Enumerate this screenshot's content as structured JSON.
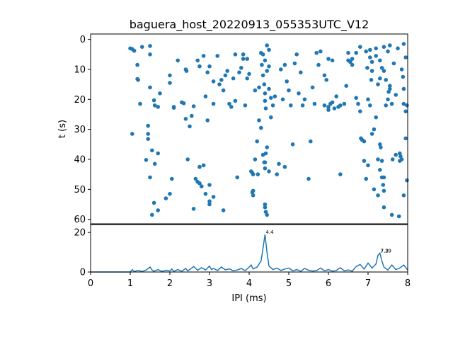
{
  "title": "baguera_host_20220913_055353UTC_V12",
  "colors": {
    "series": "#1f77b4",
    "axes": "#000000",
    "background": "#ffffff"
  },
  "chart_data": [
    {
      "type": "scatter",
      "title": "baguera_host_20220913_055353UTC_V12",
      "xlabel": "",
      "ylabel": "t (s)",
      "xlim": [
        0,
        8
      ],
      "ylim": [
        61.5,
        -1.8
      ],
      "y_inverted": true,
      "yticks": [
        0,
        10,
        20,
        30,
        40,
        50,
        60
      ],
      "grid": false,
      "points": [
        [
          1.05,
          3.2
        ],
        [
          1.1,
          3.8
        ],
        [
          1.18,
          8.5
        ],
        [
          1.18,
          13.2
        ],
        [
          1.25,
          21.5
        ],
        [
          1.05,
          31.5
        ],
        [
          1.4,
          40.2
        ],
        [
          1.45,
          28.8
        ],
        [
          1.45,
          31.5
        ],
        [
          1.45,
          33.2
        ],
        [
          1.5,
          16.0
        ],
        [
          1.5,
          46.0
        ],
        [
          1.55,
          37.0
        ],
        [
          1.6,
          20.3
        ],
        [
          1.62,
          22.0
        ],
        [
          1.7,
          22.5
        ],
        [
          1.75,
          18.0
        ],
        [
          1.6,
          54.5
        ],
        [
          1.55,
          58.5
        ],
        [
          1.3,
          2.5
        ],
        [
          1.5,
          2.2
        ],
        [
          1.5,
          5.0
        ],
        [
          1.7,
          57.0
        ],
        [
          1.9,
          53.0
        ],
        [
          2.0,
          51.5
        ],
        [
          2.05,
          46.5
        ],
        [
          2.0,
          12.0
        ],
        [
          2.0,
          14.5
        ],
        [
          2.1,
          22.8
        ],
        [
          2.2,
          7.0
        ],
        [
          2.3,
          21.0
        ],
        [
          2.35,
          21.3
        ],
        [
          2.4,
          10.0
        ],
        [
          2.42,
          10.5
        ],
        [
          2.45,
          40.0
        ],
        [
          2.5,
          29.0
        ],
        [
          2.55,
          25.5
        ],
        [
          2.6,
          22.3
        ],
        [
          2.65,
          46.5
        ],
        [
          2.7,
          47.5
        ],
        [
          2.75,
          42.5
        ],
        [
          2.8,
          49.0
        ],
        [
          2.85,
          42.0
        ],
        [
          2.9,
          51.5
        ],
        [
          2.9,
          19.0
        ],
        [
          2.95,
          27.0
        ],
        [
          3.0,
          9.0
        ],
        [
          3.0,
          48.5
        ],
        [
          3.1,
          52.5
        ],
        [
          3.0,
          54.0
        ],
        [
          3.1,
          21.5
        ],
        [
          3.2,
          5.5
        ],
        [
          3.25,
          15.0
        ],
        [
          3.3,
          13.5
        ],
        [
          3.35,
          17.0
        ],
        [
          3.4,
          12.0
        ],
        [
          3.45,
          10.5
        ],
        [
          3.5,
          21.5
        ],
        [
          3.55,
          22.5
        ],
        [
          3.6,
          13.0
        ],
        [
          3.65,
          5.0
        ],
        [
          3.7,
          46.0
        ],
        [
          3.75,
          11.0
        ],
        [
          3.8,
          9.5
        ],
        [
          3.85,
          6.5
        ],
        [
          3.9,
          22.0
        ],
        [
          3.95,
          13.0
        ],
        [
          4.0,
          11.5
        ],
        [
          4.05,
          44.0
        ],
        [
          4.1,
          45.0
        ],
        [
          4.1,
          50.5
        ],
        [
          4.1,
          52.0
        ],
        [
          4.15,
          40.0
        ],
        [
          4.2,
          34.0
        ],
        [
          4.22,
          45.0
        ],
        [
          4.25,
          27.0
        ],
        [
          4.3,
          29.5
        ],
        [
          4.35,
          38.5
        ],
        [
          4.38,
          41.0
        ],
        [
          4.4,
          43.0
        ],
        [
          4.42,
          38.0
        ],
        [
          4.45,
          36.0
        ],
        [
          4.4,
          18.0
        ],
        [
          4.4,
          20.5
        ],
        [
          4.42,
          23.0
        ],
        [
          4.38,
          15.0
        ],
        [
          4.35,
          12.0
        ],
        [
          4.4,
          7.0
        ],
        [
          4.45,
          2.0
        ],
        [
          4.5,
          3.5
        ],
        [
          4.4,
          56.0
        ],
        [
          4.42,
          57.5
        ],
        [
          4.45,
          58.5
        ],
        [
          4.4,
          55.0
        ],
        [
          4.5,
          9.0
        ],
        [
          4.55,
          26.0
        ],
        [
          4.6,
          22.0
        ],
        [
          4.65,
          19.0
        ],
        [
          4.7,
          45.0
        ],
        [
          4.75,
          41.5
        ],
        [
          4.8,
          10.0
        ],
        [
          4.85,
          20.0
        ],
        [
          4.9,
          8.5
        ],
        [
          4.9,
          42.5
        ],
        [
          4.95,
          14.0
        ],
        [
          5.0,
          17.0
        ],
        [
          5.05,
          22.0
        ],
        [
          5.1,
          35.0
        ],
        [
          5.15,
          8.0
        ],
        [
          5.2,
          5.0
        ],
        [
          5.25,
          18.0
        ],
        [
          5.3,
          11.0
        ],
        [
          5.35,
          22.0
        ],
        [
          5.4,
          20.0
        ],
        [
          5.5,
          46.5
        ],
        [
          5.55,
          34.0
        ],
        [
          5.6,
          16.0
        ],
        [
          5.65,
          21.5
        ],
        [
          5.7,
          4.5
        ],
        [
          5.8,
          4.0
        ],
        [
          5.9,
          22.0
        ],
        [
          6.0,
          6.5
        ],
        [
          6.05,
          21.5
        ],
        [
          6.1,
          7.0
        ],
        [
          6.15,
          23.0
        ],
        [
          6.2,
          19.0
        ],
        [
          6.25,
          22.5
        ],
        [
          6.3,
          45.0
        ],
        [
          6.4,
          21.5
        ],
        [
          6.45,
          15.5
        ],
        [
          6.5,
          4.5
        ],
        [
          6.55,
          7.5
        ],
        [
          6.6,
          8.5
        ],
        [
          6.7,
          19.5
        ],
        [
          6.75,
          21.5
        ],
        [
          6.8,
          24.0
        ],
        [
          6.85,
          33.5
        ],
        [
          6.9,
          40.5
        ],
        [
          6.95,
          46.5
        ],
        [
          7.0,
          42.0
        ],
        [
          7.0,
          20.0
        ],
        [
          7.05,
          22.0
        ],
        [
          7.1,
          10.5
        ],
        [
          7.1,
          31.5
        ],
        [
          7.15,
          30.0
        ],
        [
          7.2,
          26.0
        ],
        [
          7.25,
          40.0
        ],
        [
          7.3,
          43.5
        ],
        [
          7.3,
          35.0
        ],
        [
          7.32,
          36.0
        ],
        [
          7.35,
          46.0
        ],
        [
          7.38,
          48.5
        ],
        [
          7.4,
          56.0
        ],
        [
          7.4,
          50.5
        ],
        [
          7.45,
          22.0
        ],
        [
          7.5,
          20.0
        ],
        [
          7.52,
          17.5
        ],
        [
          7.55,
          15.5
        ],
        [
          7.6,
          21.5
        ],
        [
          7.65,
          8.0
        ],
        [
          7.7,
          18.5
        ],
        [
          7.75,
          3.0
        ],
        [
          7.8,
          38.0
        ],
        [
          7.85,
          40.0
        ],
        [
          7.9,
          21.5
        ],
        [
          7.95,
          33.0
        ],
        [
          7.98,
          47.0
        ],
        [
          7.6,
          58.5
        ],
        [
          7.78,
          59.0
        ],
        [
          7.9,
          52.0
        ],
        [
          6.95,
          4.0
        ],
        [
          7.05,
          6.0
        ],
        [
          7.2,
          5.5
        ],
        [
          7.3,
          13.0
        ],
        [
          7.4,
          10.5
        ],
        [
          7.5,
          4.0
        ],
        [
          7.55,
          2.0
        ],
        [
          7.1,
          7.5
        ],
        [
          7.3,
          7.0
        ],
        [
          7.35,
          9.5
        ],
        [
          7.4,
          2.5
        ],
        [
          6.7,
          4.5
        ],
        [
          6.8,
          2.5
        ],
        [
          7.05,
          3.5
        ],
        [
          7.2,
          3.0
        ],
        [
          6.98,
          9.5
        ],
        [
          7.08,
          13.5
        ],
        [
          7.25,
          15.0
        ],
        [
          7.45,
          13.5
        ],
        [
          7.55,
          16.5
        ],
        [
          3.95,
          6.5
        ],
        [
          3.85,
          5.0
        ],
        [
          4.3,
          4.5
        ],
        [
          4.35,
          5.0
        ],
        [
          4.32,
          8.5
        ],
        [
          4.45,
          10.5
        ],
        [
          4.25,
          16.0
        ],
        [
          4.5,
          16.5
        ],
        [
          4.55,
          19.5
        ],
        [
          4.15,
          17.0
        ],
        [
          3.65,
          20.5
        ],
        [
          3.1,
          14.0
        ],
        [
          2.95,
          11.0
        ],
        [
          2.85,
          5.5
        ],
        [
          2.75,
          9.0
        ],
        [
          2.7,
          7.0
        ],
        [
          5.75,
          8.5
        ],
        [
          5.9,
          12.0
        ],
        [
          5.95,
          13.5
        ],
        [
          6.0,
          22.5
        ],
        [
          6.0,
          23.5
        ],
        [
          6.1,
          21.0
        ],
        [
          6.3,
          22.0
        ],
        [
          6.5,
          7.0
        ],
        [
          6.6,
          6.5
        ],
        [
          7.9,
          1.5
        ],
        [
          7.95,
          6.0
        ],
        [
          7.85,
          10.0
        ],
        [
          7.88,
          12.5
        ],
        [
          7.9,
          16.5
        ],
        [
          7.98,
          22.0
        ],
        [
          7.95,
          24.0
        ],
        [
          7.8,
          40.5
        ],
        [
          7.82,
          39.0
        ],
        [
          7.7,
          38.5
        ],
        [
          7.62,
          40.0
        ],
        [
          7.35,
          40.5
        ],
        [
          6.9,
          34.0
        ],
        [
          6.82,
          33.0
        ],
        [
          7.15,
          50.0
        ],
        [
          7.25,
          52.0
        ],
        [
          7.4,
          46.0
        ],
        [
          4.4,
          41.0
        ],
        [
          4.5,
          44.0
        ],
        [
          4.08,
          44.5
        ],
        [
          4.08,
          51.0
        ],
        [
          2.75,
          48.0
        ],
        [
          3.35,
          57.0
        ],
        [
          3.0,
          55.0
        ],
        [
          2.6,
          56.5
        ],
        [
          2.4,
          26.5
        ],
        [
          2.1,
          22.5
        ],
        [
          1.7,
          38.0
        ],
        [
          1.62,
          41.5
        ],
        [
          1.0,
          3.0
        ],
        [
          1.2,
          13.5
        ]
      ]
    },
    {
      "type": "line",
      "xlabel": "IPI (ms)",
      "ylabel": "",
      "xlim": [
        0,
        8
      ],
      "ylim": [
        0,
        24
      ],
      "xticks": [
        0,
        1,
        2,
        3,
        4,
        5,
        6,
        7,
        8
      ],
      "yticks": [
        0,
        20
      ],
      "grid": false,
      "x": [
        0.0,
        0.5,
        1.0,
        1.05,
        1.1,
        1.2,
        1.3,
        1.4,
        1.5,
        1.55,
        1.6,
        1.7,
        1.8,
        1.9,
        2.0,
        2.05,
        2.1,
        2.2,
        2.3,
        2.4,
        2.45,
        2.5,
        2.6,
        2.7,
        2.8,
        2.9,
        3.0,
        3.05,
        3.1,
        3.2,
        3.3,
        3.4,
        3.5,
        3.6,
        3.7,
        3.8,
        3.9,
        4.0,
        4.05,
        4.1,
        4.2,
        4.3,
        4.35,
        4.4,
        4.45,
        4.5,
        4.6,
        4.7,
        4.8,
        4.9,
        5.0,
        5.1,
        5.2,
        5.3,
        5.4,
        5.5,
        5.6,
        5.7,
        5.8,
        5.9,
        6.0,
        6.1,
        6.2,
        6.3,
        6.4,
        6.5,
        6.6,
        6.7,
        6.8,
        6.9,
        7.0,
        7.1,
        7.2,
        7.25,
        7.3,
        7.35,
        7.4,
        7.5,
        7.6,
        7.7,
        7.8,
        7.9,
        8.0
      ],
      "y": [
        0,
        0,
        0,
        1.2,
        0.2,
        0.8,
        0.3,
        1.0,
        2.5,
        1.0,
        0.4,
        1.2,
        0.3,
        0.9,
        0.5,
        1.5,
        0.3,
        1.2,
        0.4,
        1.8,
        0.6,
        1.2,
        2.8,
        0.9,
        2.2,
        1.0,
        3.0,
        1.2,
        1.8,
        0.8,
        2.5,
        1.1,
        1.6,
        0.6,
        1.0,
        1.8,
        0.7,
        2.5,
        3.5,
        1.5,
        2.5,
        5.5,
        12.0,
        19.0,
        10.0,
        3.0,
        1.2,
        2.0,
        0.8,
        1.5,
        2.0,
        0.6,
        1.2,
        0.4,
        1.8,
        0.9,
        0.5,
        0.7,
        2.0,
        0.6,
        1.2,
        0.4,
        0.8,
        2.2,
        0.6,
        1.0,
        0.4,
        2.8,
        3.8,
        1.5,
        4.5,
        2.0,
        4.0,
        8.5,
        9.5,
        5.5,
        2.5,
        1.0,
        3.5,
        1.2,
        2.0,
        3.5,
        1.0
      ],
      "annotations": [
        {
          "x": 4.4,
          "y": 19.0,
          "text": "4.4"
        },
        {
          "x": 7.29,
          "y": 9.5,
          "text": "7.29"
        },
        {
          "x": 7.3,
          "y": 9.5,
          "text": "7.3"
        }
      ]
    }
  ]
}
